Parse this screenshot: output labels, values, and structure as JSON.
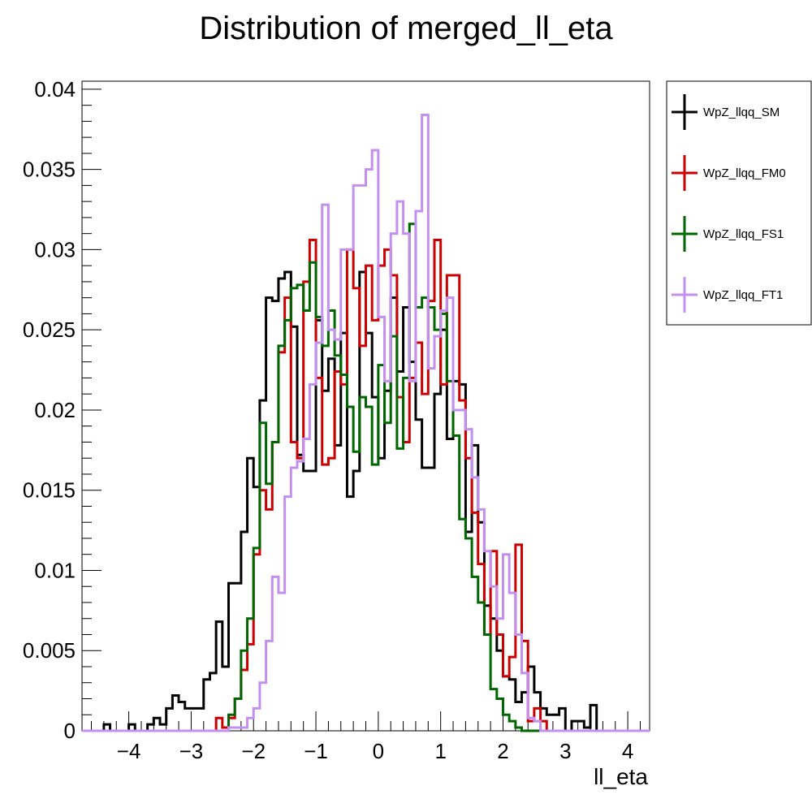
{
  "chart_data": {
    "type": "histogram",
    "title": "Distribution of merged_ll_eta",
    "xlabel": "ll_eta",
    "ylabel": "",
    "xlim": [
      -4.75,
      4.35
    ],
    "ylim": [
      0,
      0.0405
    ],
    "x_ticks": [
      -4,
      -3,
      -2,
      -1,
      0,
      1,
      2,
      3,
      4
    ],
    "x_tick_labels": [
      "−4",
      "−3",
      "−2",
      "−1",
      "0",
      "1",
      "2",
      "3",
      "4"
    ],
    "y_ticks": [
      0,
      0.005,
      0.01,
      0.015,
      0.02,
      0.025,
      0.03,
      0.035,
      0.04
    ],
    "y_tick_labels": [
      "0",
      "0.005",
      "0.01",
      "0.015",
      "0.02",
      "0.025",
      "0.03",
      "0.035",
      "0.04"
    ],
    "bin_start": -2.6,
    "bin_width": 0.1,
    "legend": {
      "placement": "outside-right"
    },
    "series": [
      {
        "name": "WpZ_llqq_SM",
        "color": "#000000",
        "bin_start": -4.4,
        "values": [
          0.0004,
          0,
          0,
          0,
          0.0004,
          0,
          0,
          0.0004,
          0.0008,
          0.0004,
          0.0014,
          0.0022,
          0.0018,
          0.0014,
          0.0014,
          0.0014,
          0.0032,
          0.0036,
          0.0068,
          0.004,
          0.0092,
          0.0092,
          0.0124,
          0.017,
          0.0152,
          0.0206,
          0.027,
          0.0268,
          0.0282,
          0.0286,
          0.0252,
          0.0172,
          0.0162,
          0.0162,
          0.0256,
          0.0212,
          0.0232,
          0.0178,
          0.0248,
          0.0146,
          0.0162,
          0.0286,
          0.0248,
          0.0208,
          0.017,
          0.0212,
          0.027,
          0.0224,
          0.0264,
          0.023,
          0.0194,
          0.0164,
          0.0164,
          0.021,
          0.025,
          0.0182,
          0.0218,
          0.0216,
          0.0124,
          0.0178,
          0.013,
          0.0078,
          0.007,
          0.005,
          0.0034,
          0.0032,
          0.0018,
          0.0024,
          0.004,
          0.0024,
          0.0014,
          0.001,
          0.001,
          0.0014,
          0,
          0.0006,
          0.0006,
          0.0002,
          0.0016,
          0,
          0
        ]
      },
      {
        "name": "WpZ_llqq_FM0",
        "color": "#cc0000",
        "bin_start": -2.6,
        "values": [
          0.0008,
          0.0002,
          0.0008,
          0.002,
          0.0038,
          0.0054,
          0.011,
          0.015,
          0.0138,
          0.018,
          0.0236,
          0.027,
          0.018,
          0.017,
          0.028,
          0.0306,
          0.022,
          0.0166,
          0.017,
          0.0224,
          0.0216,
          0.03,
          0.0276,
          0.024,
          0.029,
          0.0256,
          0.029,
          0.03,
          0.0284,
          0.0208,
          0.018,
          0.022,
          0.0242,
          0.021,
          0.0268,
          0.0306,
          0.0216,
          0.0284,
          0.0284,
          0.0206,
          0.017,
          0.0136,
          0.0104,
          0.006,
          0.0112,
          0.006,
          0.0034,
          0.0046,
          0.0116,
          0.0056,
          0.0006,
          0.0014,
          0.0006
        ]
      },
      {
        "name": "WpZ_llqq_FS1",
        "color": "#006600",
        "bin_start": -2.4,
        "values": [
          0.001,
          0.002,
          0.005,
          0.007,
          0.0114,
          0.0192,
          0.0154,
          0.018,
          0.024,
          0.0256,
          0.0276,
          0.0278,
          0.0262,
          0.0292,
          0.0258,
          0.024,
          0.0262,
          0.0234,
          0.0222,
          0.0202,
          0.0174,
          0.0208,
          0.0202,
          0.0166,
          0.0228,
          0.0192,
          0.0246,
          0.0176,
          0.022,
          0.0316,
          0.0264,
          0.027,
          0.0264,
          0.025,
          0.026,
          0.0218,
          0.0184,
          0.0132,
          0.012,
          0.0096,
          0.008,
          0.006,
          0.0026,
          0.002,
          0.001,
          0.0006,
          0.0002
        ]
      },
      {
        "name": "WpZ_llqq_FT1",
        "color": "#c390f0",
        "bin_start": -2.4,
        "values": [
          0.0002,
          0.0002,
          0.0002,
          0.0008,
          0.0014,
          0.003,
          0.0056,
          0.0096,
          0.0086,
          0.0146,
          0.0164,
          0.0168,
          0.0182,
          0.0216,
          0.0242,
          0.0328,
          0.025,
          0.0244,
          0.03,
          0.03,
          0.034,
          0.034,
          0.035,
          0.0362,
          0.0258,
          0.0218,
          0.031,
          0.033,
          0.031,
          0.0218,
          0.0324,
          0.0384,
          0.0226,
          0.0246,
          0.0262,
          0.027,
          0.02,
          0.02,
          0.0188,
          0.0158,
          0.0138,
          0.0112,
          0.009,
          0.007,
          0.011,
          0.0086,
          0.006,
          0.0036,
          0.0008,
          0.0006
        ]
      }
    ]
  }
}
